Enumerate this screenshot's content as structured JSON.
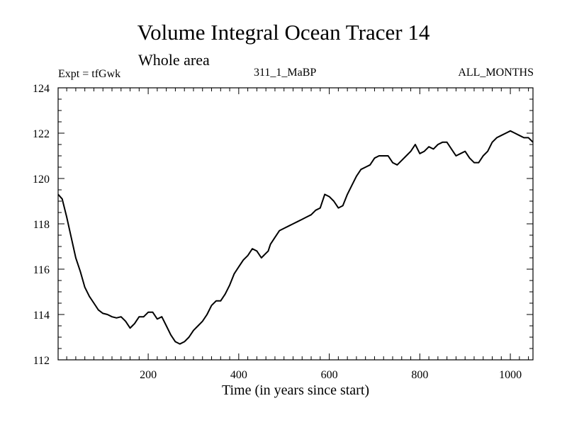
{
  "chart_data": {
    "type": "line",
    "title": "Volume Integral Ocean Tracer 14",
    "subtitle": "Whole area",
    "annotations": {
      "left": "Expt = tfGwk",
      "center": "311_1_MaBP",
      "right": "ALL_MONTHS"
    },
    "xlabel": "Time (in years since start)",
    "ylabel": "",
    "xlim": [
      1,
      1050
    ],
    "ylim": [
      112,
      124
    ],
    "xticks": [
      200,
      400,
      600,
      800,
      1000
    ],
    "yticks": [
      112,
      114,
      116,
      118,
      120,
      122,
      124
    ],
    "grid": false,
    "series": [
      {
        "x": [
          1,
          10,
          20,
          30,
          40,
          50,
          60,
          70,
          80,
          90,
          100,
          110,
          120,
          130,
          140,
          150,
          160,
          165,
          170,
          180,
          190,
          200,
          210,
          220,
          230,
          240,
          250,
          260,
          270,
          280,
          290,
          300,
          310,
          320,
          330,
          340,
          350,
          360,
          370,
          380,
          390,
          400,
          410,
          420,
          430,
          440,
          450,
          460,
          465,
          470,
          480,
          490,
          500,
          510,
          520,
          530,
          540,
          550,
          560,
          570,
          580,
          590,
          600,
          610,
          620,
          630,
          640,
          650,
          660,
          670,
          680,
          690,
          700,
          710,
          720,
          730,
          740,
          750,
          760,
          770,
          780,
          790,
          800,
          810,
          820,
          830,
          840,
          850,
          860,
          870,
          880,
          890,
          900,
          910,
          920,
          930,
          940,
          950,
          960,
          970,
          980,
          990,
          1000,
          1010,
          1020,
          1030,
          1040,
          1050
        ],
        "y": [
          119.3,
          119.1,
          118.3,
          117.4,
          116.5,
          115.9,
          115.2,
          114.8,
          114.5,
          114.2,
          114.05,
          114.0,
          113.9,
          113.85,
          113.9,
          113.7,
          113.4,
          113.5,
          113.6,
          113.9,
          113.9,
          114.1,
          114.1,
          113.8,
          113.9,
          113.5,
          113.1,
          112.8,
          112.7,
          112.8,
          113.0,
          113.3,
          113.5,
          113.7,
          114.0,
          114.4,
          114.6,
          114.6,
          114.9,
          115.3,
          115.8,
          116.1,
          116.4,
          116.6,
          116.9,
          116.8,
          116.5,
          116.7,
          116.8,
          117.1,
          117.4,
          117.7,
          117.8,
          117.9,
          118.0,
          118.1,
          118.2,
          118.3,
          118.4,
          118.6,
          118.7,
          119.3,
          119.2,
          119.0,
          118.7,
          118.8,
          119.3,
          119.7,
          120.1,
          120.4,
          120.5,
          120.6,
          120.9,
          121.0,
          121.0,
          121.0,
          120.7,
          120.6,
          120.8,
          121.0,
          121.2,
          121.5,
          121.1,
          121.2,
          121.4,
          121.3,
          121.5,
          121.6,
          121.6,
          121.3,
          121.0,
          121.1,
          121.2,
          120.9,
          120.7,
          120.7,
          121.0,
          121.2,
          121.6,
          121.8,
          121.9,
          122.0,
          122.1,
          122.0,
          121.9,
          121.8,
          121.8,
          121.6
        ]
      }
    ]
  }
}
